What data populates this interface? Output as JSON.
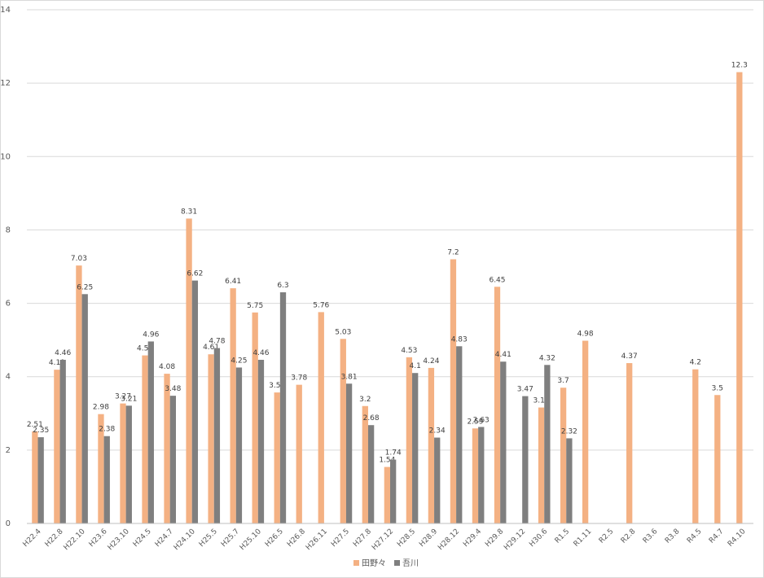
{
  "chart_data": {
    "type": "bar",
    "categories": [
      "H22.4",
      "H22.8",
      "H22.10",
      "H23.6",
      "H23.10",
      "H24.5",
      "H24.7",
      "H24.10",
      "H25.5",
      "H25.7",
      "H25.10",
      "H26.5",
      "H26.8",
      "H26.11",
      "H27.5",
      "H27.8",
      "H27.12",
      "H28.5",
      "H28.9",
      "H28.12",
      "H29.4",
      "H29.8",
      "H29.12",
      "H30.6",
      "R1.5",
      "R1.11",
      "R2.5",
      "R2.8",
      "R3.6",
      "R3.8",
      "R4.5",
      "R4.7",
      "R4.10"
    ],
    "series": [
      {
        "name": "田野々",
        "color": "#f4b183",
        "values": [
          2.51,
          4.19,
          7.03,
          2.98,
          3.27,
          4.58,
          4.08,
          8.31,
          4.61,
          6.41,
          5.75,
          3.57,
          3.78,
          5.76,
          5.03,
          3.2,
          1.54,
          4.53,
          4.24,
          7.2,
          2.59,
          6.45,
          null,
          3.16,
          3.7,
          4.98,
          null,
          4.37,
          null,
          null,
          4.2,
          3.5,
          12.3
        ]
      },
      {
        "name": "吾川",
        "color": "#7f7f7f",
        "values": [
          2.35,
          4.46,
          6.25,
          2.38,
          3.21,
          4.96,
          3.48,
          6.62,
          4.78,
          4.25,
          4.46,
          6.3,
          null,
          null,
          3.81,
          2.68,
          1.74,
          4.1,
          2.34,
          4.83,
          2.63,
          4.41,
          3.47,
          4.32,
          2.32,
          null,
          null,
          null,
          null,
          null,
          null,
          null,
          null
        ]
      }
    ],
    "ylim": [
      0,
      14
    ],
    "yticks": [
      0,
      2,
      4,
      6,
      8,
      10,
      12,
      14
    ],
    "grid": true,
    "legend": "bottom"
  }
}
